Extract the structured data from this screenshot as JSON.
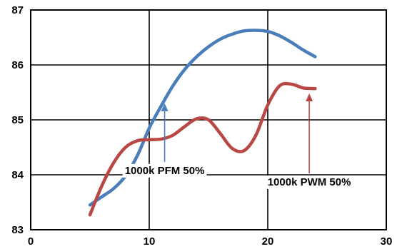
{
  "chart_data": {
    "type": "line",
    "title": "",
    "xlabel": "",
    "ylabel": "",
    "xlim": [
      0,
      30
    ],
    "ylim": [
      83,
      87
    ],
    "grid": true,
    "x_ticks": [
      "0",
      "10",
      "20",
      "30"
    ],
    "y_ticks": [
      "83",
      "84",
      "85",
      "86",
      "87"
    ],
    "series": [
      {
        "color": "#4a7ebb",
        "x": [
          5,
          6,
          7,
          8,
          9,
          10,
          11,
          12,
          13,
          14,
          15,
          16,
          17,
          18,
          19,
          20,
          21,
          22,
          23,
          24
        ],
        "y": [
          83.45,
          83.6,
          83.75,
          83.98,
          84.35,
          84.85,
          85.25,
          85.62,
          85.92,
          86.15,
          86.33,
          86.47,
          86.56,
          86.62,
          86.63,
          86.61,
          86.53,
          86.41,
          86.27,
          86.15
        ]
      },
      {
        "color": "#b94744",
        "x": [
          5,
          6,
          7,
          8,
          9,
          10,
          11,
          12,
          13,
          14,
          15,
          16,
          17,
          18,
          19,
          20,
          21,
          22,
          23,
          24
        ],
        "y": [
          83.27,
          83.8,
          84.22,
          84.5,
          84.62,
          84.64,
          84.65,
          84.72,
          84.88,
          85.02,
          85.0,
          84.75,
          84.48,
          84.44,
          84.72,
          85.27,
          85.62,
          85.65,
          85.58,
          85.57
        ]
      }
    ],
    "annotations": [
      {
        "text": "1000k PFM 50%",
        "x": 11.3,
        "y": 84.08,
        "arrow_to": [
          11.3,
          85.3
        ],
        "arrow_color": "#4a7ebb"
      },
      {
        "text": "1000k PWM 50%",
        "x": 23.5,
        "y": 83.87,
        "arrow_to": [
          23.5,
          85.48
        ],
        "arrow_color": "#b94744"
      }
    ]
  }
}
